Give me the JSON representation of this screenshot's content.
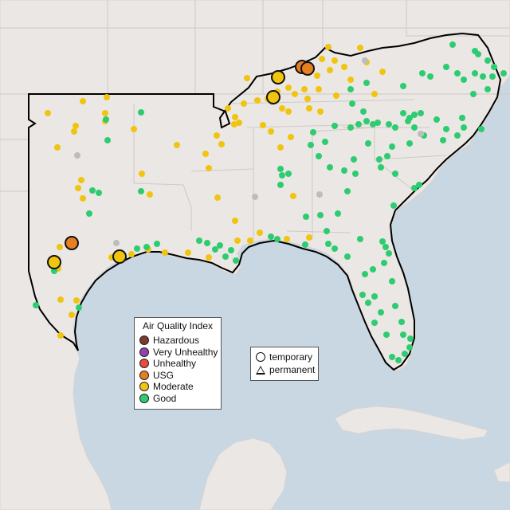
{
  "legend": {
    "title": "Air Quality Index",
    "items": [
      {
        "label": "Hazardous",
        "color": "#7e3a32"
      },
      {
        "label": "Very Unhealthy",
        "color": "#8e44ad"
      },
      {
        "label": "Unhealthy",
        "color": "#e74c3c"
      },
      {
        "label": "USG",
        "color": "#e67e22"
      },
      {
        "label": "Moderate",
        "color": "#f1c40f"
      },
      {
        "label": "Good",
        "color": "#2ecc71"
      }
    ]
  },
  "shape_legend": {
    "items": [
      {
        "label": "temporary",
        "icon": "circle-icon"
      },
      {
        "label": "permanent",
        "icon": "triangle-icon"
      }
    ]
  },
  "colors": {
    "ocean": "#c9d7e3",
    "land": "#ebe7e4",
    "nodata": "#bdbdbd"
  }
}
